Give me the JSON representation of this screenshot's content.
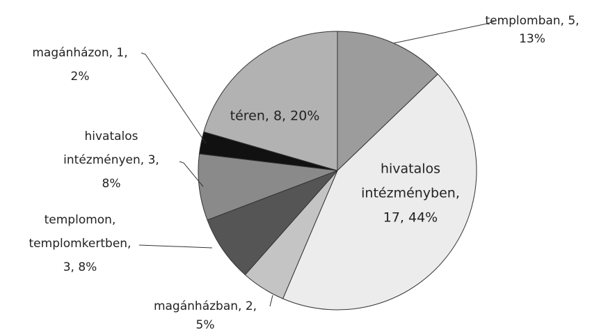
{
  "chart_data": {
    "type": "pie",
    "values": [
      5,
      17,
      2,
      3,
      3,
      1,
      8
    ],
    "value_labels": [
      [
        "templomban, 5,",
        "13%"
      ],
      [
        "hivatalos",
        "intézményben,",
        "17, 44%"
      ],
      [
        "magánházban, 2,",
        "5%"
      ],
      [
        "templomon,",
        "templomkertben,",
        "3, 8%"
      ],
      [
        "hivatalos",
        "intézményen, 3,",
        "8%"
      ],
      [
        "magánházon, 1,",
        "2%"
      ],
      [
        "téren, 8, 20%"
      ]
    ],
    "colors": [
      "#9c9c9c",
      "#ececec",
      "#c4c4c4",
      "#555555",
      "#8a8a8a",
      "#111111",
      "#b2b2b2"
    ]
  }
}
